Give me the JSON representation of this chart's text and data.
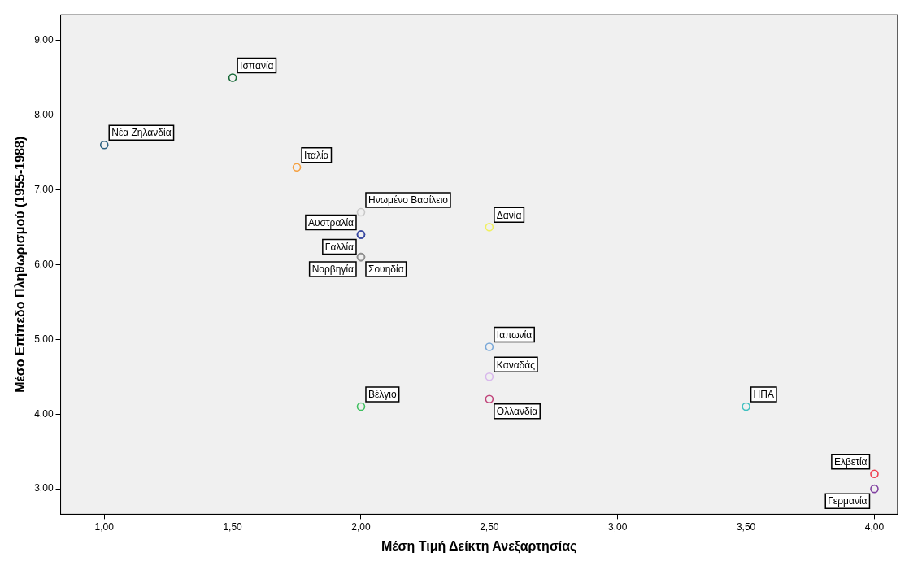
{
  "chart_data": {
    "type": "scatter",
    "xlabel": "Μέση Τιμή Δείκτη Ανεξαρτησίας",
    "ylabel": "Μέσο Επίπεδο Πληθωρισμού (1955-1988)",
    "xlim": [
      0.83,
      4.09
    ],
    "ylim": [
      2.66,
      9.34
    ],
    "xticks": [
      {
        "value": 1,
        "label": "1,00"
      },
      {
        "value": 1.5,
        "label": "1,50"
      },
      {
        "value": 2,
        "label": "2,00"
      },
      {
        "value": 2.5,
        "label": "2,50"
      },
      {
        "value": 3,
        "label": "3,00"
      },
      {
        "value": 3.5,
        "label": "3,50"
      },
      {
        "value": 4,
        "label": "4,00"
      }
    ],
    "yticks": [
      {
        "value": 3,
        "label": "3,00"
      },
      {
        "value": 4,
        "label": "4,00"
      },
      {
        "value": 5,
        "label": "5,00"
      },
      {
        "value": 6,
        "label": "6,00"
      },
      {
        "value": 7,
        "label": "7,00"
      },
      {
        "value": 8,
        "label": "8,00"
      },
      {
        "value": 9,
        "label": "9,00"
      }
    ],
    "grid": false,
    "legend": false,
    "marker": "circle",
    "series": [
      {
        "name": "Νέα Ζηλανδία",
        "color": "#2c6080",
        "x": [
          1.0
        ],
        "values": [
          7.6
        ]
      },
      {
        "name": "Ισπανία",
        "color": "#1a6b3a",
        "x": [
          1.5
        ],
        "values": [
          8.5
        ]
      },
      {
        "name": "Ιταλία",
        "color": "#f5a040",
        "x": [
          1.75
        ],
        "values": [
          7.3
        ]
      },
      {
        "name": "Ηνωμένο Βασίλειο",
        "color": "#c8c8c8",
        "x": [
          2.0
        ],
        "values": [
          6.7
        ]
      },
      {
        "name": "Αυστραλία",
        "color": "#3848a0",
        "x": [
          2.0
        ],
        "values": [
          6.4
        ]
      },
      {
        "name": "Γαλλία",
        "color": "#3848a0",
        "x": [
          2.0
        ],
        "values": [
          6.4
        ]
      },
      {
        "name": "Νορβηγία",
        "color": "#909090",
        "x": [
          2.0
        ],
        "values": [
          6.1
        ]
      },
      {
        "name": "Σουηδία",
        "color": "#909090",
        "x": [
          2.0
        ],
        "values": [
          6.1
        ]
      },
      {
        "name": "Δανία",
        "color": "#f0f060",
        "x": [
          2.5
        ],
        "values": [
          6.5
        ]
      },
      {
        "name": "Ιαπωνία",
        "color": "#7aa8d8",
        "x": [
          2.5
        ],
        "values": [
          4.9
        ]
      },
      {
        "name": "Καναδάς",
        "color": "#d8b8ec",
        "x": [
          2.5
        ],
        "values": [
          4.5
        ]
      },
      {
        "name": "Ολλανδία",
        "color": "#c0447a",
        "x": [
          2.5
        ],
        "values": [
          4.2
        ]
      },
      {
        "name": "Βέλγιο",
        "color": "#40c060",
        "x": [
          2.0
        ],
        "values": [
          4.1
        ]
      },
      {
        "name": "ΗΠΑ",
        "color": "#40c0c0",
        "x": [
          3.5
        ],
        "values": [
          4.1
        ]
      },
      {
        "name": "Ελβετία",
        "color": "#f04050",
        "x": [
          4.0
        ],
        "values": [
          3.2
        ]
      },
      {
        "name": "Γερμανία",
        "color": "#8040a0",
        "x": [
          4.0
        ],
        "values": [
          3.0
        ]
      }
    ]
  }
}
